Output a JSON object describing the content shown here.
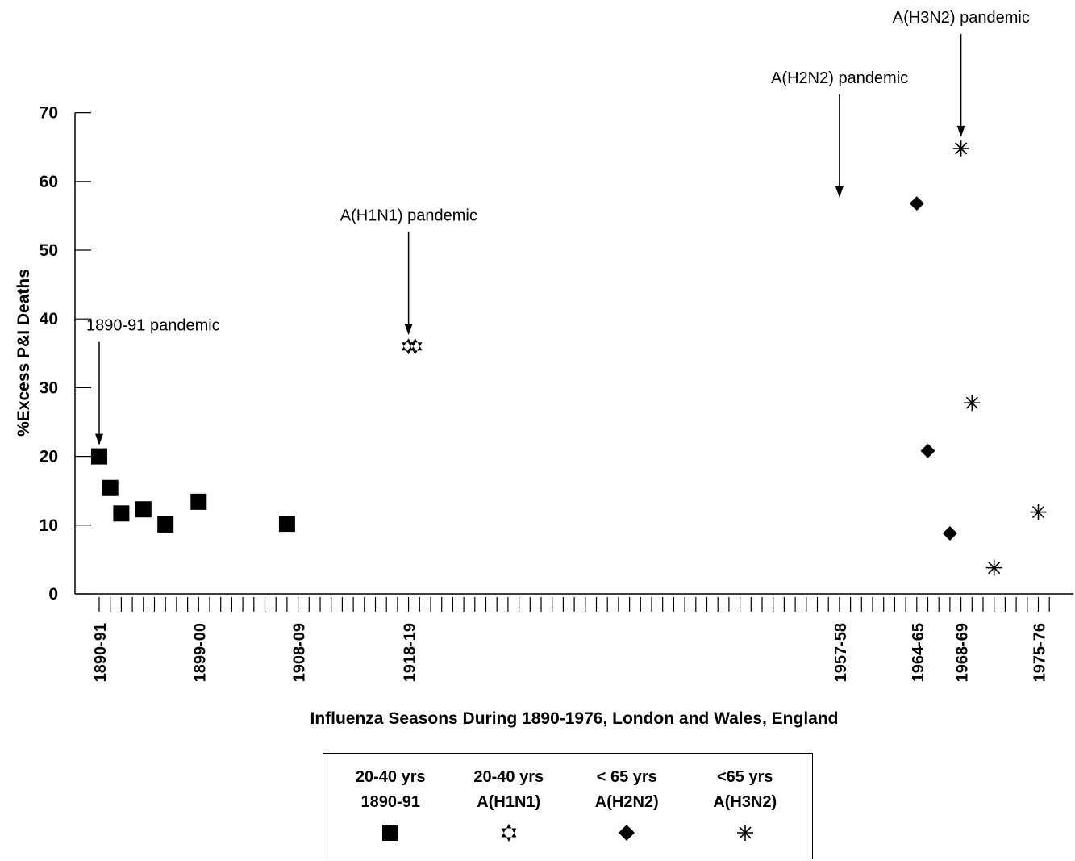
{
  "chart_data": {
    "type": "scatter",
    "ylabel": "%Excess P&I Deaths",
    "xlabel": "Influenza Seasons During 1890-1976, London and Wales, England",
    "ylim": [
      0,
      70
    ],
    "yticks": [
      0,
      10,
      20,
      30,
      40,
      50,
      60,
      70
    ],
    "xlim": [
      1890,
      1976
    ],
    "xtick_labels": [
      {
        "label": "1890-91",
        "x": 1890
      },
      {
        "label": "1899-00",
        "x": 1899
      },
      {
        "label": "1908-09",
        "x": 1908
      },
      {
        "label": "1918-19",
        "x": 1918
      },
      {
        "label": "1957-58",
        "x": 1957
      },
      {
        "label": "1964-65",
        "x": 1964
      },
      {
        "label": "1968-69",
        "x": 1968
      },
      {
        "label": "1975-76",
        "x": 1975
      }
    ],
    "series": [
      {
        "name": "20-40 yrs 1890-91",
        "marker": "square",
        "color": "#000000",
        "points": [
          [
            1890,
            20
          ],
          [
            1891,
            15.4
          ],
          [
            1892,
            11.7
          ],
          [
            1894,
            12.3
          ],
          [
            1896,
            10.1
          ],
          [
            1899,
            13.4
          ],
          [
            1907,
            10.2
          ]
        ]
      },
      {
        "name": "20-40 yrs A(H1N1)",
        "marker": "star6",
        "color": "#000000",
        "points": [
          [
            1918,
            36
          ],
          [
            1918.6,
            36
          ]
        ]
      },
      {
        "name": "< 65 yrs A(H2N2)",
        "marker": "diamond",
        "color": "#000000",
        "points": [
          [
            1964,
            56.8
          ],
          [
            1965,
            20.8
          ],
          [
            1967,
            8.8
          ]
        ]
      },
      {
        "name": "<65 yrs A(H3N2)",
        "marker": "asterisk",
        "color": "#000000",
        "points": [
          [
            1968,
            64.8
          ],
          [
            1969,
            27.8
          ],
          [
            1971,
            3.8
          ],
          [
            1975,
            11.9
          ]
        ]
      }
    ],
    "annotations": [
      {
        "text": "1890-91 pandemic",
        "x": 1890,
        "y": 20
      },
      {
        "text": "A(H1N1) pandemic",
        "x": 1918,
        "y": 36
      },
      {
        "text": "A(H2N2) pandemic",
        "x": 1957,
        "y": 56
      },
      {
        "text": "A(H3N2) pandemic",
        "x": 1968,
        "y": 64.8
      }
    ],
    "legend": {
      "placement": "bottom",
      "items": [
        {
          "line1": "20-40 yrs",
          "line2": "1890-91",
          "marker": "square"
        },
        {
          "line1": "20-40 yrs",
          "line2": "A(H1N1)",
          "marker": "star6"
        },
        {
          "line1": "< 65 yrs",
          "line2": "A(H2N2)",
          "marker": "diamond"
        },
        {
          "line1": "<65 yrs",
          "line2": "A(H3N2)",
          "marker": "asterisk"
        }
      ]
    },
    "grid": false
  }
}
